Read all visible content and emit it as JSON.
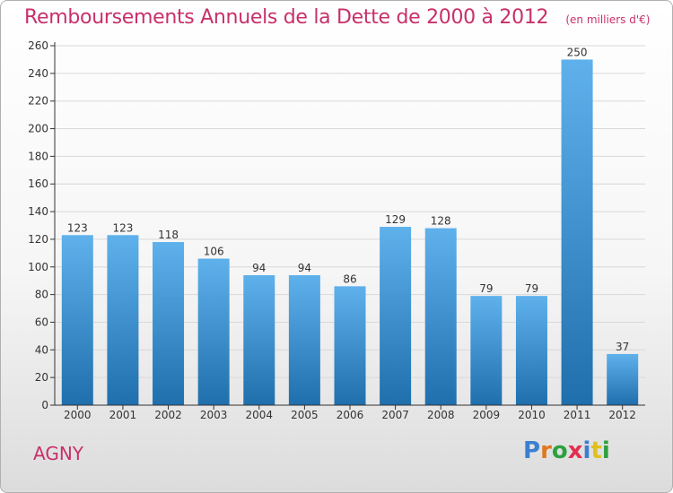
{
  "header": {
    "title": "Remboursements Annuels de la Dette de 2000 à 2012",
    "subtitle": "(en milliers d'€)"
  },
  "footer": {
    "city": "AGNY",
    "logo_text": "Proxiti",
    "logo_colors": [
      "#3a7fd0",
      "#e07820",
      "#2ea040",
      "#e03050",
      "#3a7fd0",
      "#e0c020",
      "#2ea040"
    ]
  },
  "colors": {
    "title": "#c8306a",
    "bar_light": "#5fb1ec",
    "bar_dark": "#1f6fad",
    "axis": "#333333",
    "grid": "#d8d8d8"
  },
  "chart_data": {
    "type": "bar",
    "categories": [
      "2000",
      "2001",
      "2002",
      "2003",
      "2004",
      "2005",
      "2006",
      "2007",
      "2008",
      "2009",
      "2010",
      "2011",
      "2012"
    ],
    "values": [
      123,
      123,
      118,
      106,
      94,
      94,
      86,
      129,
      128,
      79,
      79,
      250,
      37
    ],
    "data_labels": [
      "123",
      "123",
      "118",
      "106",
      "94",
      "94",
      "86",
      "129",
      "128",
      "79",
      "79",
      "250",
      "37"
    ],
    "y_ticks": [
      0,
      20,
      40,
      60,
      80,
      100,
      120,
      140,
      160,
      180,
      200,
      220,
      240,
      260
    ],
    "ylim": [
      0,
      260
    ],
    "grid": true,
    "legend": "none"
  }
}
